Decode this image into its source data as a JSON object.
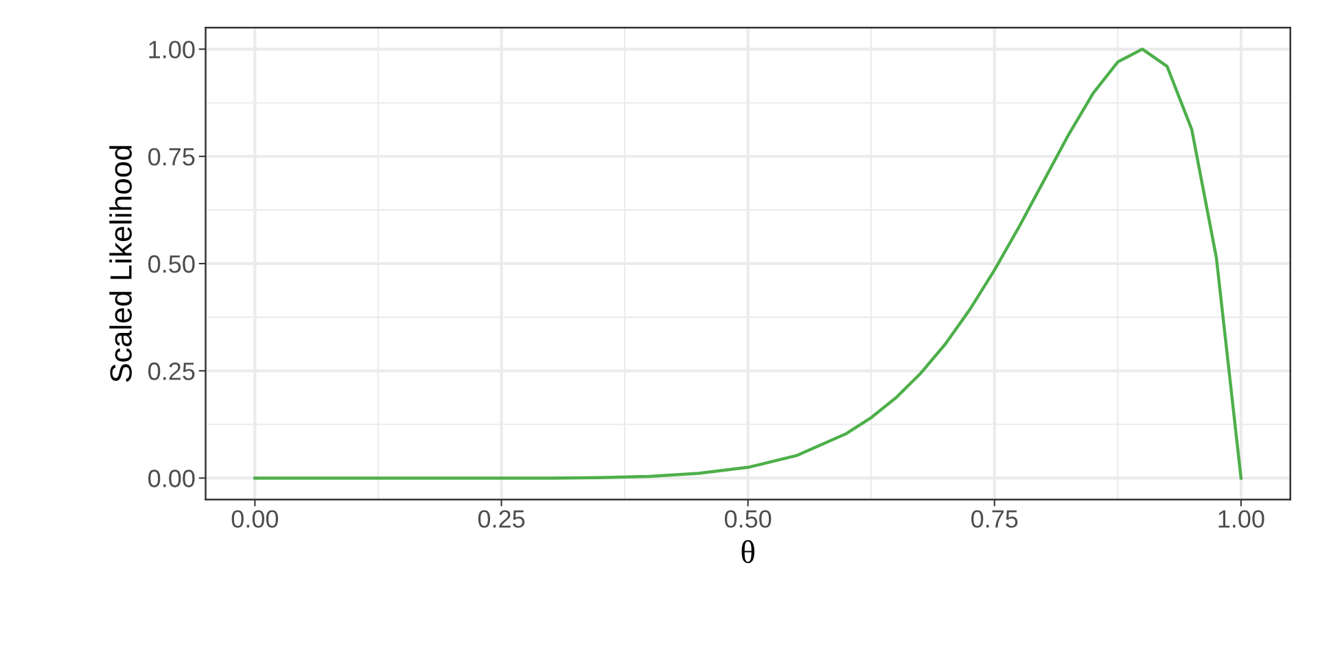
{
  "chart_data": {
    "type": "line",
    "xlabel": "θ",
    "ylabel": "Scaled Likelihood",
    "x": [
      0,
      0.05,
      0.1,
      0.15,
      0.2,
      0.25,
      0.3,
      0.35,
      0.4,
      0.45,
      0.5,
      0.55,
      0.6,
      0.625,
      0.65,
      0.675,
      0.7,
      0.725,
      0.75,
      0.775,
      0.8,
      0.825,
      0.85,
      0.875,
      0.9,
      0.925,
      0.95,
      0.975,
      1.0
    ],
    "series": [
      {
        "color": "#4daf4a",
        "values": [
          0,
          0,
          0,
          0,
          0,
          0,
          0,
          0.001,
          0.004,
          0.011,
          0.025,
          0.053,
          0.104,
          0.141,
          0.187,
          0.244,
          0.312,
          0.393,
          0.485,
          0.586,
          0.693,
          0.8,
          0.897,
          0.97,
          1.0,
          0.96,
          0.813,
          0.514,
          0
        ]
      }
    ],
    "xlim": [
      -0.05,
      1.05
    ],
    "ylim": [
      -0.05,
      1.05
    ],
    "xticks": [
      {
        "value": 0,
        "label": "0.00"
      },
      {
        "value": 0.25,
        "label": "0.25"
      },
      {
        "value": 0.5,
        "label": "0.50"
      },
      {
        "value": 0.75,
        "label": "0.75"
      },
      {
        "value": 1,
        "label": "1.00"
      }
    ],
    "yticks": [
      {
        "value": 0,
        "label": "0.00"
      },
      {
        "value": 0.25,
        "label": "0.25"
      },
      {
        "value": 0.5,
        "label": "0.50"
      },
      {
        "value": 0.75,
        "label": "0.75"
      },
      {
        "value": 1,
        "label": "1.00"
      }
    ],
    "grid": true,
    "legend": false,
    "marker": "none",
    "line_style": "solid"
  }
}
